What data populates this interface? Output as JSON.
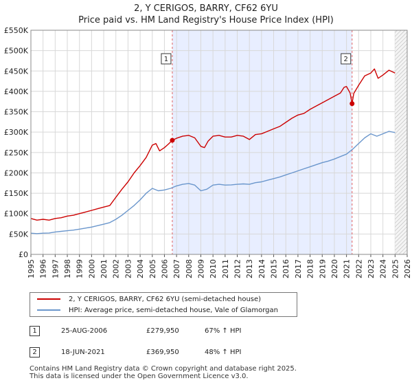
{
  "chart_data": {
    "type": "line",
    "title": "2, Y CERIGOS, BARRY, CF62 6YU",
    "subtitle": "Price paid vs. HM Land Registry's House Price Index (HPI)",
    "xlim": [
      1995,
      2026
    ],
    "ylim": [
      0,
      550000
    ],
    "x_ticks": [
      "1995",
      "1996",
      "1997",
      "1998",
      "1999",
      "2000",
      "2001",
      "2002",
      "2003",
      "2004",
      "2005",
      "2006",
      "2007",
      "2008",
      "2009",
      "2010",
      "2011",
      "2012",
      "2013",
      "2014",
      "2015",
      "2016",
      "2017",
      "2018",
      "2019",
      "2020",
      "2021",
      "2022",
      "2023",
      "2024",
      "2025",
      "2026"
    ],
    "y_ticks": [
      {
        "value": 0,
        "label": "£0"
      },
      {
        "value": 50000,
        "label": "£50K"
      },
      {
        "value": 100000,
        "label": "£100K"
      },
      {
        "value": 150000,
        "label": "£150K"
      },
      {
        "value": 200000,
        "label": "£200K"
      },
      {
        "value": 250000,
        "label": "£250K"
      },
      {
        "value": 300000,
        "label": "£300K"
      },
      {
        "value": 350000,
        "label": "£350K"
      },
      {
        "value": 400000,
        "label": "£400K"
      },
      {
        "value": 450000,
        "label": "£450K"
      },
      {
        "value": 500000,
        "label": "£500K"
      },
      {
        "value": 550000,
        "label": "£550K"
      }
    ],
    "shaded_range": [
      2006.65,
      2021.46
    ],
    "future_start": 2025.0,
    "series": [
      {
        "name": "2, Y CERIGOS, BARRY, CF62 6YU (semi-detached house)",
        "color": "#cc0000",
        "points": [
          [
            1995.0,
            88000
          ],
          [
            1995.5,
            84000
          ],
          [
            1996.0,
            86000
          ],
          [
            1996.5,
            84000
          ],
          [
            1997.0,
            88000
          ],
          [
            1997.5,
            90000
          ],
          [
            1998.0,
            94000
          ],
          [
            1998.5,
            96000
          ],
          [
            1999.0,
            100000
          ],
          [
            1999.5,
            104000
          ],
          [
            2000.0,
            108000
          ],
          [
            2000.5,
            112000
          ],
          [
            2001.0,
            116000
          ],
          [
            2001.5,
            120000
          ],
          [
            2002.0,
            140000
          ],
          [
            2002.5,
            160000
          ],
          [
            2003.0,
            178000
          ],
          [
            2003.5,
            200000
          ],
          [
            2004.0,
            218000
          ],
          [
            2004.5,
            238000
          ],
          [
            2005.0,
            268000
          ],
          [
            2005.3,
            272000
          ],
          [
            2005.6,
            254000
          ],
          [
            2006.0,
            262000
          ],
          [
            2006.3,
            270000
          ],
          [
            2006.65,
            279950
          ],
          [
            2007.0,
            285000
          ],
          [
            2007.5,
            290000
          ],
          [
            2008.0,
            292000
          ],
          [
            2008.5,
            286000
          ],
          [
            2009.0,
            265000
          ],
          [
            2009.3,
            262000
          ],
          [
            2009.6,
            278000
          ],
          [
            2010.0,
            290000
          ],
          [
            2010.5,
            292000
          ],
          [
            2011.0,
            288000
          ],
          [
            2011.5,
            288000
          ],
          [
            2012.0,
            292000
          ],
          [
            2012.5,
            290000
          ],
          [
            2013.0,
            282000
          ],
          [
            2013.5,
            294000
          ],
          [
            2014.0,
            296000
          ],
          [
            2014.5,
            302000
          ],
          [
            2015.0,
            308000
          ],
          [
            2015.5,
            314000
          ],
          [
            2016.0,
            324000
          ],
          [
            2016.5,
            334000
          ],
          [
            2017.0,
            342000
          ],
          [
            2017.5,
            346000
          ],
          [
            2018.0,
            356000
          ],
          [
            2018.5,
            364000
          ],
          [
            2019.0,
            372000
          ],
          [
            2019.5,
            380000
          ],
          [
            2020.0,
            388000
          ],
          [
            2020.5,
            396000
          ],
          [
            2020.8,
            410000
          ],
          [
            2021.0,
            412000
          ],
          [
            2021.3,
            396000
          ],
          [
            2021.46,
            369950
          ],
          [
            2021.6,
            395000
          ],
          [
            2022.0,
            415000
          ],
          [
            2022.5,
            438000
          ],
          [
            2023.0,
            445000
          ],
          [
            2023.3,
            455000
          ],
          [
            2023.6,
            432000
          ],
          [
            2024.0,
            440000
          ],
          [
            2024.5,
            452000
          ],
          [
            2025.0,
            445000
          ]
        ]
      },
      {
        "name": "HPI: Average price, semi-detached house, Vale of Glamorgan",
        "color": "#6a96cc",
        "points": [
          [
            1995.0,
            52000
          ],
          [
            1995.5,
            51000
          ],
          [
            1996.0,
            52000
          ],
          [
            1996.5,
            52500
          ],
          [
            1997.0,
            55000
          ],
          [
            1997.5,
            56500
          ],
          [
            1998.0,
            58000
          ],
          [
            1998.5,
            59500
          ],
          [
            1999.0,
            62000
          ],
          [
            1999.5,
            64500
          ],
          [
            2000.0,
            67000
          ],
          [
            2000.5,
            70500
          ],
          [
            2001.0,
            74000
          ],
          [
            2001.5,
            78000
          ],
          [
            2002.0,
            86000
          ],
          [
            2002.5,
            96000
          ],
          [
            2003.0,
            108000
          ],
          [
            2003.5,
            120000
          ],
          [
            2004.0,
            134000
          ],
          [
            2004.5,
            150000
          ],
          [
            2005.0,
            162000
          ],
          [
            2005.5,
            156000
          ],
          [
            2006.0,
            158000
          ],
          [
            2006.5,
            162000
          ],
          [
            2007.0,
            168000
          ],
          [
            2007.5,
            172000
          ],
          [
            2008.0,
            174000
          ],
          [
            2008.5,
            170000
          ],
          [
            2009.0,
            156000
          ],
          [
            2009.5,
            160000
          ],
          [
            2010.0,
            170000
          ],
          [
            2010.5,
            172000
          ],
          [
            2011.0,
            170000
          ],
          [
            2011.5,
            170500
          ],
          [
            2012.0,
            172000
          ],
          [
            2012.5,
            173000
          ],
          [
            2013.0,
            172000
          ],
          [
            2013.5,
            176000
          ],
          [
            2014.0,
            178000
          ],
          [
            2014.5,
            182000
          ],
          [
            2015.0,
            186000
          ],
          [
            2015.5,
            190000
          ],
          [
            2016.0,
            195000
          ],
          [
            2016.5,
            200000
          ],
          [
            2017.0,
            205000
          ],
          [
            2017.5,
            210000
          ],
          [
            2018.0,
            215000
          ],
          [
            2018.5,
            220000
          ],
          [
            2019.0,
            225000
          ],
          [
            2019.5,
            229000
          ],
          [
            2020.0,
            234000
          ],
          [
            2020.5,
            240000
          ],
          [
            2021.0,
            246000
          ],
          [
            2021.5,
            258000
          ],
          [
            2022.0,
            272000
          ],
          [
            2022.5,
            286000
          ],
          [
            2023.0,
            296000
          ],
          [
            2023.5,
            290000
          ],
          [
            2024.0,
            296000
          ],
          [
            2024.5,
            302000
          ],
          [
            2025.0,
            299000
          ]
        ]
      }
    ],
    "sales": [
      {
        "label": "1",
        "x": 2006.65,
        "y": 279950
      },
      {
        "label": "2",
        "x": 2021.46,
        "y": 369950
      }
    ]
  },
  "legend": [
    {
      "label": "2, Y CERIGOS, BARRY, CF62 6YU (semi-detached house)",
      "color": "#cc0000"
    },
    {
      "label": "HPI: Average price, semi-detached house, Vale of Glamorgan",
      "color": "#6a96cc"
    }
  ],
  "annotations": [
    {
      "num": "1",
      "date": "25-AUG-2006",
      "price": "£279,950",
      "hpi": "67% ↑ HPI"
    },
    {
      "num": "2",
      "date": "18-JUN-2021",
      "price": "£369,950",
      "hpi": "48% ↑ HPI"
    }
  ],
  "footer": {
    "line1": "Contains HM Land Registry data © Crown copyright and database right 2025.",
    "line2": "This data is licensed under the Open Government Licence v3.0."
  }
}
